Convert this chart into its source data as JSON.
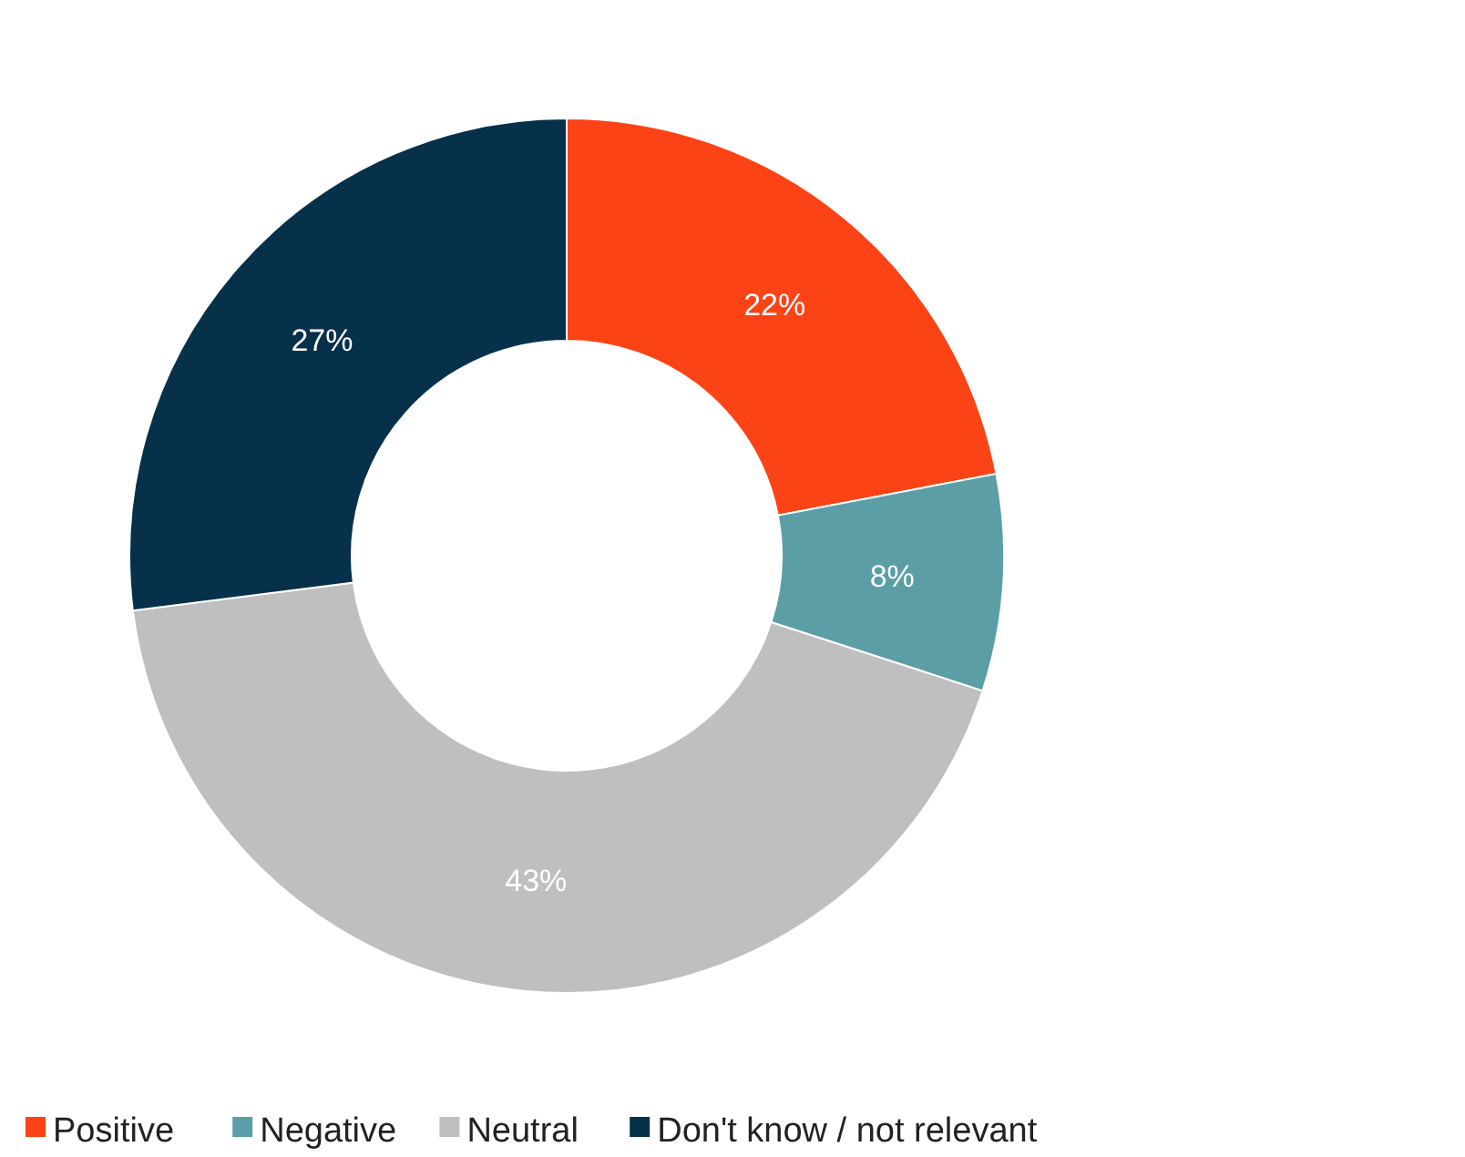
{
  "chart_data": {
    "type": "donut",
    "categories": [
      "Positive",
      "Negative",
      "Neutral",
      "Don't know / not relevant"
    ],
    "values": [
      22,
      8,
      43,
      27
    ],
    "colors": [
      "#fc4316",
      "#5b9ea6",
      "#bfbfbf",
      "#07304a"
    ],
    "value_labels": [
      "22%",
      "8%",
      "43%",
      "27%"
    ],
    "legend": "bottom"
  }
}
